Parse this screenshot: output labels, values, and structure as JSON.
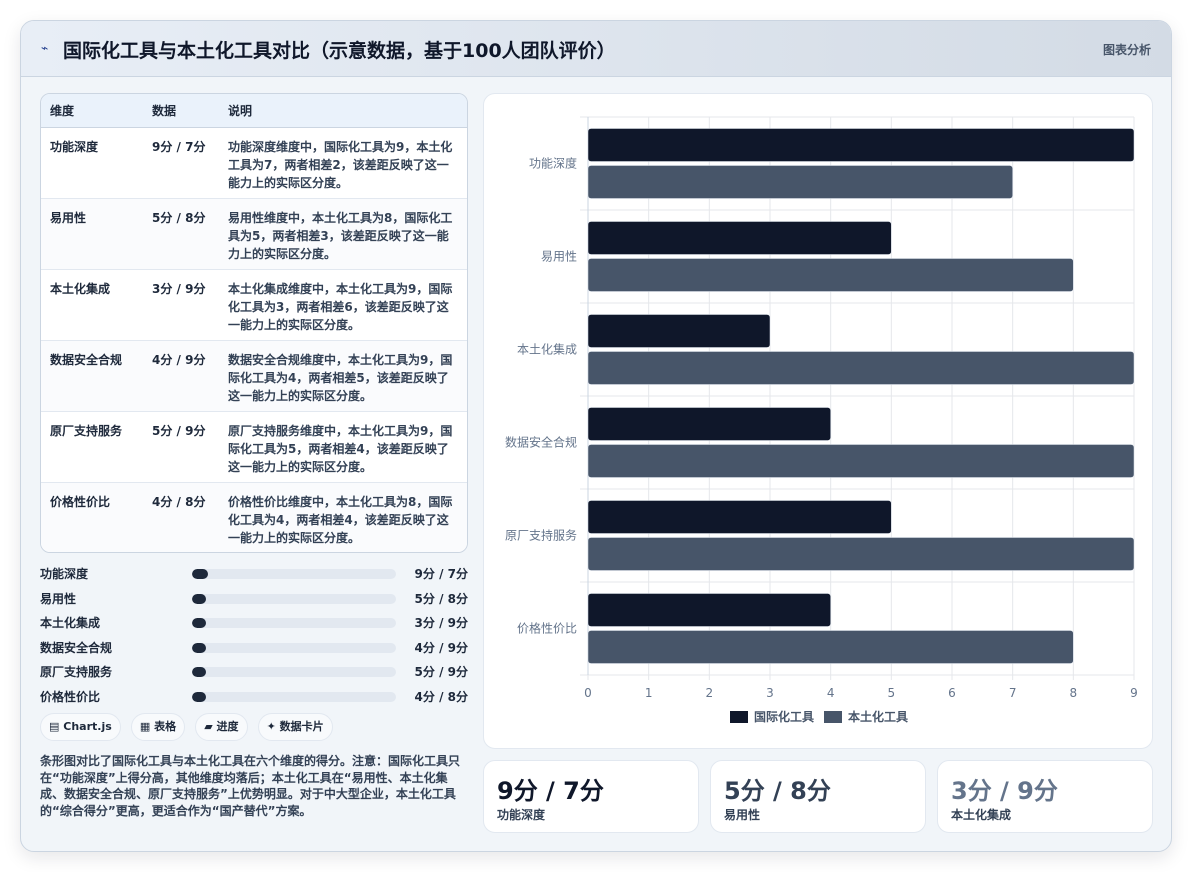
{
  "header": {
    "logo_icon": "pulse-icon",
    "logo_glyph": "⌁",
    "title": "国际化工具与本土化工具对比（示意数据，基于100人团队评价）",
    "tag": "图表分析"
  },
  "table": {
    "headers": [
      "维度",
      "数据",
      "说明"
    ],
    "rows": [
      {
        "dim": "功能深度",
        "val": "9分 / 7分",
        "desc": "功能深度维度中，国际化工具为9，本土化工具为7，两者相差2，该差距反映了这一能力上的实际区分度。"
      },
      {
        "dim": "易用性",
        "val": "5分 / 8分",
        "desc": "易用性维度中，本土化工具为8，国际化工具为5，两者相差3，该差距反映了这一能力上的实际区分度。"
      },
      {
        "dim": "本土化集成",
        "val": "3分 / 9分",
        "desc": "本土化集成维度中，本土化工具为9，国际化工具为3，两者相差6，该差距反映了这一能力上的实际区分度。"
      },
      {
        "dim": "数据安全合规",
        "val": "4分 / 9分",
        "desc": "数据安全合规维度中，本土化工具为9，国际化工具为4，两者相差5，该差距反映了这一能力上的实际区分度。"
      },
      {
        "dim": "原厂支持服务",
        "val": "5分 / 9分",
        "desc": "原厂支持服务维度中，本土化工具为9，国际化工具为5，两者相差4，该差距反映了这一能力上的实际区分度。"
      },
      {
        "dim": "价格性价比",
        "val": "4分 / 8分",
        "desc": "价格性价比维度中，本土化工具为8，国际化工具为4，两者相差4，该差距反映了这一能力上的实际区分度。"
      }
    ]
  },
  "progress": [
    {
      "label": "功能深度",
      "value": "9分 / 7分",
      "fill": 0.08
    },
    {
      "label": "易用性",
      "value": "5分 / 8分",
      "fill": 0.07
    },
    {
      "label": "本土化集成",
      "value": "3分 / 9分",
      "fill": 0.07
    },
    {
      "label": "数据安全合规",
      "value": "4分 / 9分",
      "fill": 0.07
    },
    {
      "label": "原厂支持服务",
      "value": "5分 / 9分",
      "fill": 0.07
    },
    {
      "label": "价格性价比",
      "value": "4分 / 8分",
      "fill": 0.07
    }
  ],
  "buttons": [
    {
      "icon": "chart-icon",
      "glyph": "▤",
      "label": "Chart.js"
    },
    {
      "icon": "table-icon",
      "glyph": "▦",
      "label": "表格"
    },
    {
      "icon": "progress-icon",
      "glyph": "▰",
      "label": "进度"
    },
    {
      "icon": "sparkle-icon",
      "glyph": "✦",
      "label": "数据卡片"
    }
  ],
  "note": "条形图对比了国际化工具与本土化工具在六个维度的得分。注意：国际化工具只在“功能深度”上得分高，其他维度均落后；本土化工具在“易用性、本土化集成、数据安全合规、原厂支持服务”上优势明显。对于中大型企业，本土化工具的“综合得分”更高，更适合作为“国产替代”方案。",
  "kpis": [
    {
      "value": "9分 / 7分",
      "label": "功能深度",
      "color": "#0f172a"
    },
    {
      "value": "5分 / 8分",
      "label": "易用性",
      "color": "#334155"
    },
    {
      "value": "3分 / 9分",
      "label": "本土化集成",
      "color": "#64748b"
    }
  ],
  "chart_data": {
    "type": "bar",
    "orientation": "horizontal",
    "categories": [
      "功能深度",
      "易用性",
      "本土化集成",
      "数据安全合规",
      "原厂支持服务",
      "价格性价比"
    ],
    "series": [
      {
        "name": "国际化工具",
        "values": [
          9,
          5,
          3,
          4,
          5,
          4
        ],
        "color": "#0f172a"
      },
      {
        "name": "本土化工具",
        "values": [
          7,
          8,
          9,
          9,
          9,
          8
        ],
        "color": "#475569"
      }
    ],
    "xlim": [
      0,
      9
    ],
    "xticks": [
      "0",
      "1",
      "2",
      "3",
      "4",
      "5",
      "6",
      "7",
      "8",
      "9"
    ],
    "grid": true,
    "legend": "bottom"
  }
}
